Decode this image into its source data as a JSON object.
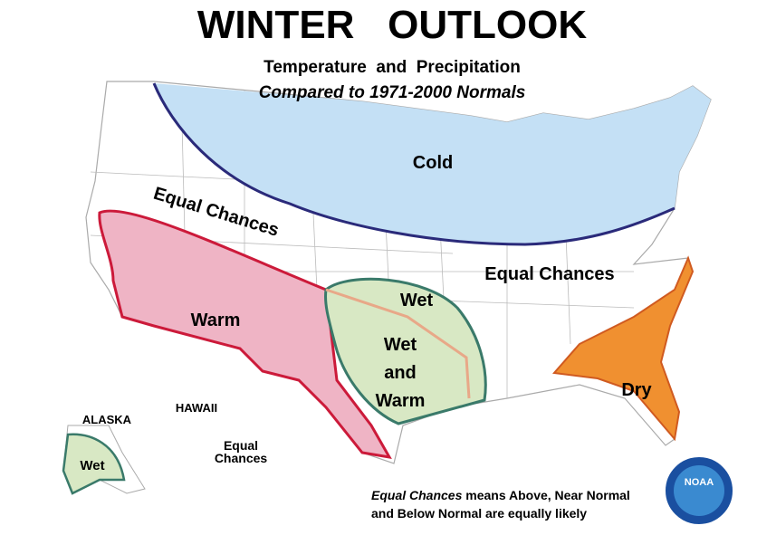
{
  "header": {
    "title": "WINTER   OUTLOOK",
    "subtitle": "Temperature  and  Precipitation",
    "subtitle2": "Compared to 1971-2000 Normals"
  },
  "regions": {
    "cold": "Cold",
    "equal_chances_west": "Equal Chances",
    "warm": "Warm",
    "wet": "Wet",
    "wet_and_warm": [
      "Wet",
      "and",
      "Warm"
    ],
    "equal_chances_east": "Equal Chances",
    "dry": "Dry"
  },
  "insets": {
    "alaska": "ALASKA",
    "alaska_wet": "Wet",
    "hawaii": "HAWAII",
    "hawaii_equal_chances": [
      "Equal",
      "Chances"
    ]
  },
  "footnote": {
    "emphasis": "Equal Chances",
    "line1": "means Above, Near Normal",
    "line2": "and Below Normal are equally likely"
  },
  "logo": {
    "label": "NOAA"
  }
}
